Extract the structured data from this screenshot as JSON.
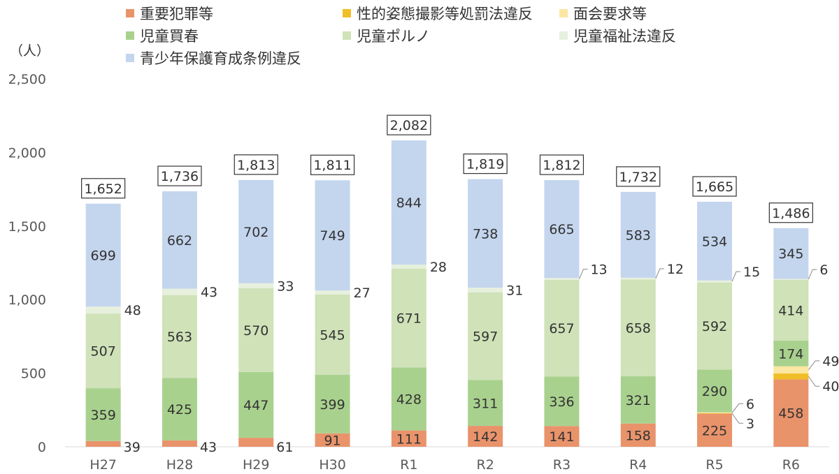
{
  "chart_data": {
    "type": "bar",
    "stacked": true,
    "unit": "（人）",
    "categories": [
      "H27",
      "H28",
      "H29",
      "H30",
      "R1",
      "R2",
      "R3",
      "R4",
      "R5",
      "R6"
    ],
    "totals": [
      1652,
      1736,
      1813,
      1811,
      2082,
      1819,
      1812,
      1732,
      1665,
      1486
    ],
    "series": [
      {
        "name": "重要犯罪等",
        "color": "#E9936B",
        "values": [
          39,
          43,
          61,
          91,
          111,
          142,
          141,
          158,
          225,
          458
        ]
      },
      {
        "name": "性的姿態撮影等処罰法違反",
        "color": "#F0BE28",
        "values": [
          0,
          0,
          0,
          0,
          0,
          0,
          0,
          0,
          3,
          40
        ]
      },
      {
        "name": "面会要求等",
        "color": "#FBE7A1",
        "values": [
          0,
          0,
          0,
          0,
          0,
          0,
          0,
          0,
          6,
          49
        ]
      },
      {
        "name": "児童買春",
        "color": "#A9D18E",
        "values": [
          359,
          425,
          447,
          399,
          428,
          311,
          336,
          321,
          290,
          174
        ]
      },
      {
        "name": "児童ポルノ",
        "color": "#CFE2B8",
        "values": [
          507,
          563,
          570,
          545,
          671,
          597,
          657,
          658,
          592,
          414
        ]
      },
      {
        "name": "児童福祉法違反",
        "color": "#E6F0DC",
        "values": [
          48,
          43,
          33,
          27,
          28,
          31,
          13,
          12,
          15,
          6
        ]
      },
      {
        "name": "青少年保護育成条例違反",
        "color": "#C4D5EE",
        "values": [
          699,
          662,
          702,
          749,
          844,
          738,
          665,
          583,
          534,
          345
        ]
      }
    ],
    "ylim": [
      0,
      2500
    ],
    "yticks": [
      "0",
      "500",
      "1,000",
      "1,500",
      "2,000",
      "2,500"
    ],
    "total_labels": [
      "1,652",
      "1,736",
      "1,813",
      "1,811",
      "2,082",
      "1,819",
      "1,812",
      "1,732",
      "1,665",
      "1,486"
    ],
    "grid": false,
    "legend_position": "top"
  }
}
